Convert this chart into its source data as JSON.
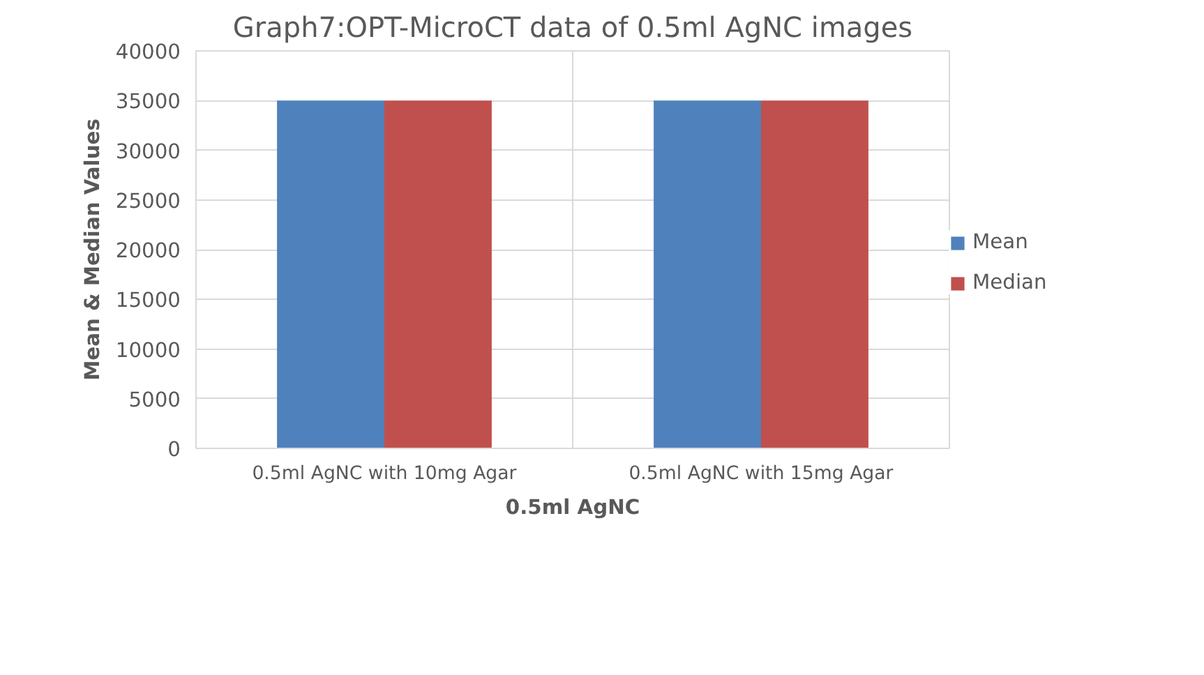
{
  "chart_data": {
    "type": "bar",
    "title": "Graph7:OPT-MicroCT data of 0.5ml AgNC images",
    "xlabel": "0.5ml AgNC",
    "ylabel": "Mean & Median Values",
    "categories": [
      "0.5ml AgNC with 10mg Agar",
      "0.5ml AgNC with 15mg Agar"
    ],
    "series": [
      {
        "name": "Mean",
        "color": "#4f81bd",
        "values": [
          35000,
          35000
        ]
      },
      {
        "name": "Median",
        "color": "#c0504d",
        "values": [
          35000,
          35000
        ]
      }
    ],
    "ylim": [
      0,
      40000
    ],
    "yticks": [
      0,
      5000,
      10000,
      15000,
      20000,
      25000,
      30000,
      35000,
      40000
    ],
    "grid": true,
    "legend": "right"
  }
}
